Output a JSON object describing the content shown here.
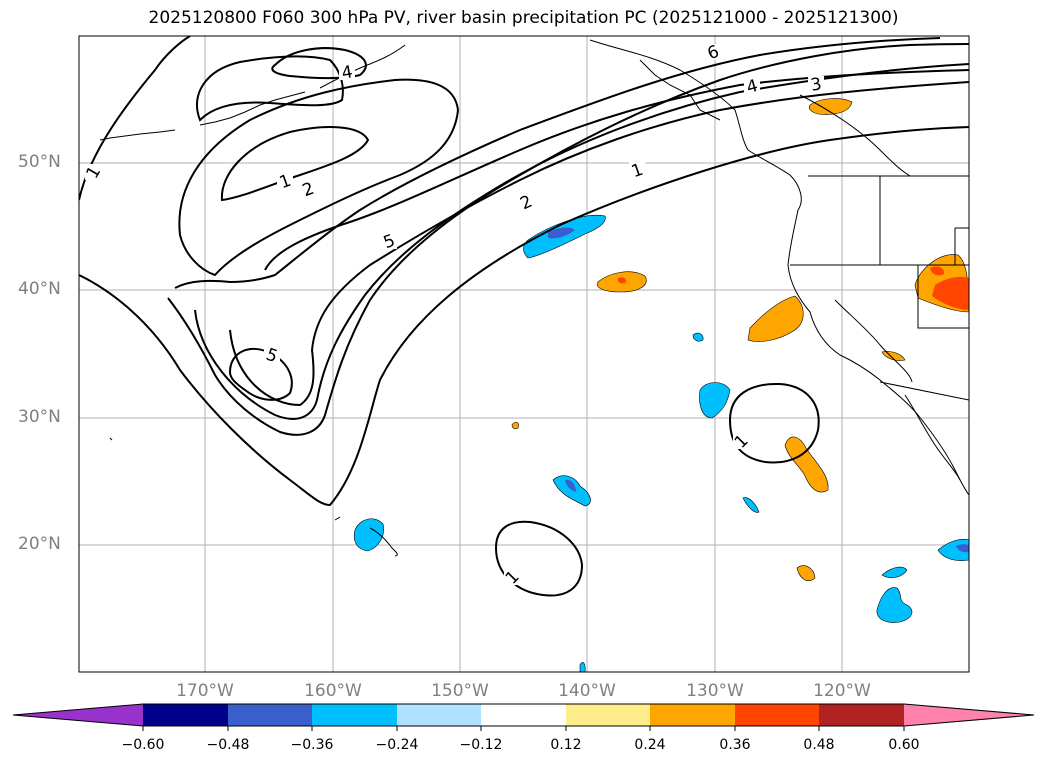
{
  "title": "2025120800 F060 300 hPa PV, river basin precipitation PC (2025121000 - 2025121300)",
  "lat_labels": [
    "50°N",
    "40°N",
    "30°N",
    "20°N"
  ],
  "lon_labels": [
    "170°W",
    "160°W",
    "150°W",
    "140°W",
    "130°W",
    "120°W"
  ],
  "contour_labels": [
    "1",
    "4",
    "6",
    "4",
    "3",
    "1",
    "2",
    "1",
    "2",
    "5",
    "5",
    "1",
    "1"
  ],
  "colorbar": {
    "ticks": [
      "−0.60",
      "−0.48",
      "−0.36",
      "−0.24",
      "−0.12",
      "0.12",
      "0.24",
      "0.36",
      "0.48",
      "0.60"
    ],
    "colors": [
      "#9932cc",
      "#00008b",
      "#3a5fcd",
      "#00bfff",
      "#b0e2ff",
      "#ffffff",
      "#ffec8b",
      "#ffa500",
      "#ff4500",
      "#b22222",
      "#ff82ab"
    ]
  }
}
